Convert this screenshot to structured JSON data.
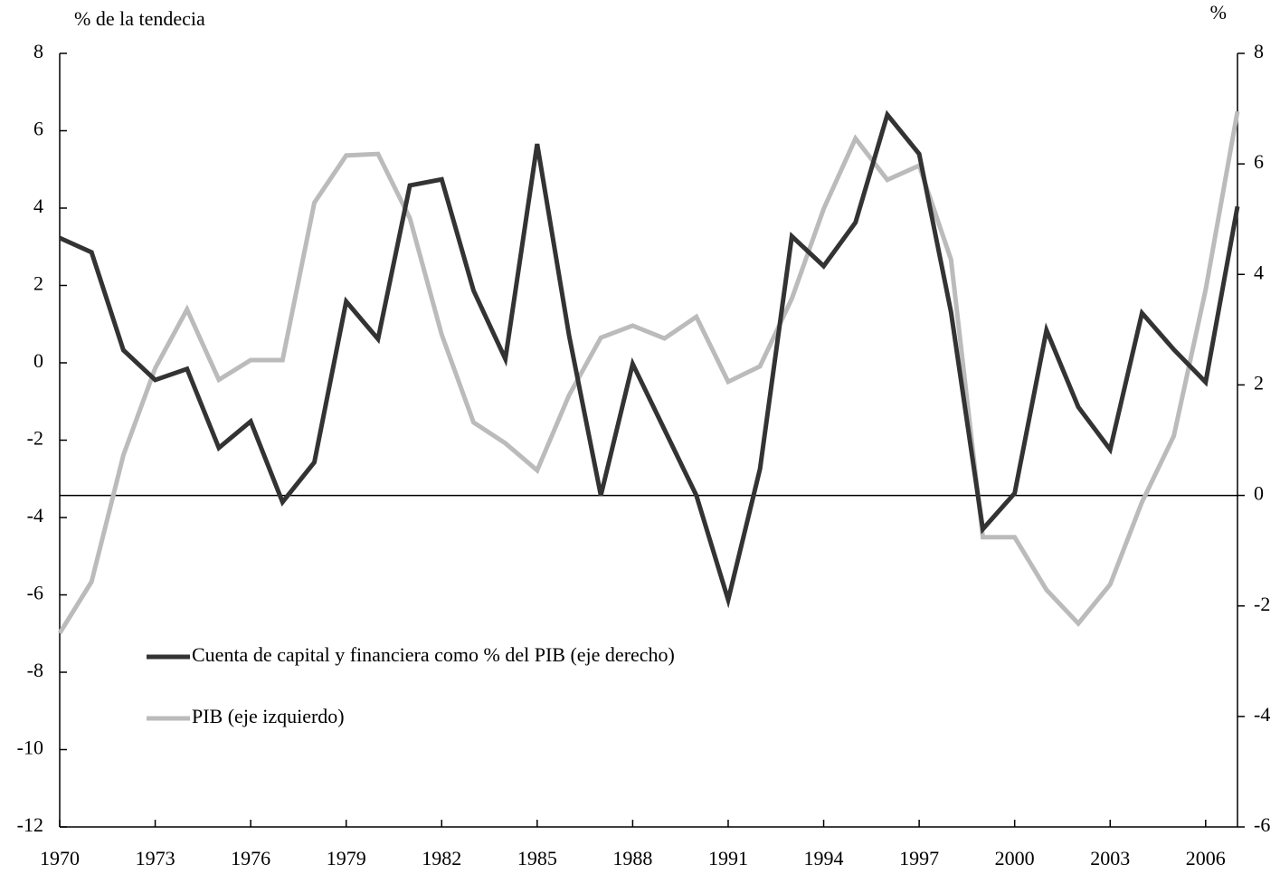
{
  "chart_data": {
    "type": "line",
    "y_label": "% de la tendecia",
    "y2_label": "%",
    "x": [
      1970,
      1971,
      1972,
      1973,
      1974,
      1975,
      1976,
      1977,
      1978,
      1979,
      1980,
      1981,
      1982,
      1983,
      1984,
      1985,
      1986,
      1987,
      1988,
      1989,
      1990,
      1991,
      1992,
      1993,
      1994,
      1995,
      1996,
      1997,
      1998,
      1999,
      2000,
      2001,
      2002,
      2003,
      2004,
      2005,
      2006,
      2007
    ],
    "xlim": [
      1970,
      2007
    ],
    "xticks": [
      1970,
      1973,
      1976,
      1979,
      1982,
      1985,
      1988,
      1991,
      1994,
      1997,
      2000,
      2003,
      2006
    ],
    "ylim": [
      -12,
      8
    ],
    "yticks": [
      -12,
      -10,
      -8,
      -6,
      -4,
      -2,
      0,
      2,
      4,
      6,
      8
    ],
    "y2lim": [
      -6,
      8
    ],
    "y2ticks": [
      -6,
      -4,
      -2,
      0,
      2,
      4,
      6,
      8
    ],
    "series": [
      {
        "name": "Cuenta de capital y financiera como % del PIB (eje derecho)",
        "color": "#333333",
        "axis": "y2",
        "values": [
          4.66,
          4.4,
          2.63,
          2.09,
          2.29,
          0.86,
          1.34,
          -0.12,
          0.6,
          3.51,
          2.83,
          5.61,
          5.72,
          3.71,
          2.47,
          6.36,
          2.9,
          0.0,
          2.38,
          1.19,
          0.0,
          -1.89,
          0.48,
          4.69,
          4.15,
          4.94,
          6.89,
          6.18,
          3.32,
          -0.61,
          0.04,
          2.99,
          1.6,
          0.83,
          3.3,
          2.64,
          2.05,
          5.23
        ]
      },
      {
        "name": "PIB (eje izquierdo)",
        "color": "#bbbbbb",
        "values": [
          -6.99,
          -5.66,
          -2.39,
          -0.14,
          1.38,
          -0.44,
          0.07,
          0.07,
          4.14,
          5.36,
          5.4,
          3.74,
          0.73,
          -1.54,
          -2.08,
          -2.78,
          -0.84,
          0.65,
          0.96,
          0.63,
          1.19,
          -0.49,
          -0.09,
          1.66,
          3.98,
          5.8,
          4.73,
          5.1,
          2.67,
          -4.51,
          -4.51,
          -5.87,
          -6.74,
          -5.73,
          -3.6,
          -1.89,
          1.89,
          6.5
        ]
      }
    ]
  }
}
